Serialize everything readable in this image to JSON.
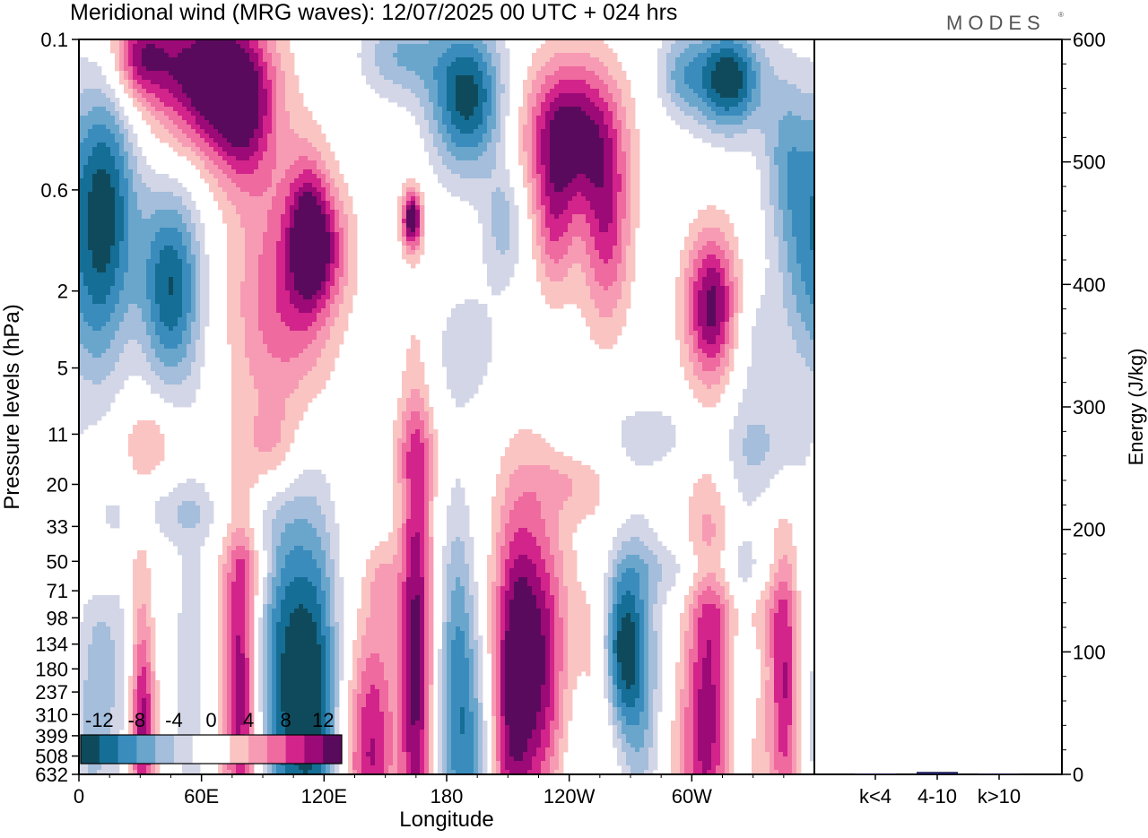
{
  "header": {
    "title": "Meridional wind (MRG waves):  12/07/2025  00 UTC  + 024 hrs",
    "brand": "MODES",
    "brand_mark": "®"
  },
  "chart_data": [
    {
      "type": "heatmap",
      "title": "Meridional wind (MRG waves):  12/07/2025  00 UTC  + 024 hrs",
      "xlabel": "Longitude",
      "ylabel": "Pressure levels (hPa)",
      "x_ticks": [
        "0",
        "60E",
        "120E",
        "180",
        "120W",
        "60W"
      ],
      "x_tick_degrees": [
        0,
        60,
        120,
        180,
        240,
        300
      ],
      "x_range": [
        0,
        360
      ],
      "y_ticks": [
        "0.1",
        "0.6",
        "2",
        "5",
        "11",
        "20",
        "33",
        "50",
        "71",
        "98",
        "134",
        "180",
        "237",
        "310",
        "399",
        "508",
        "632"
      ],
      "y_scale": "log-pressure",
      "colorbar": {
        "labels": [
          "-12",
          "-8",
          "-4",
          "0",
          "4",
          "8",
          "12"
        ],
        "colors": [
          "#0f4a5c",
          "#156e95",
          "#3a8cbd",
          "#6aa6cc",
          "#a4bedc",
          "#d3d6e6",
          "#ffffff",
          "#ffffff",
          "#fac4c2",
          "#f79bb4",
          "#ee6a9f",
          "#d2248a",
          "#9b0a76",
          "#5a0a5c"
        ]
      },
      "blobs": [
        {
          "lon": 62,
          "p": 0.15,
          "v": 14,
          "w": 28,
          "h": 0.1
        },
        {
          "lon": 30,
          "p": 0.12,
          "v": 9,
          "w": 14,
          "h": 0.06
        },
        {
          "lon": 12,
          "p": 0.7,
          "v": -13,
          "w": 16,
          "h": 0.16
        },
        {
          "lon": 45,
          "p": 1.9,
          "v": -12,
          "w": 15,
          "h": 0.13
        },
        {
          "lon": 8,
          "p": 3.0,
          "v": -4,
          "w": 14,
          "h": 0.12
        },
        {
          "lon": 100,
          "p": 2.2,
          "v": 8,
          "w": 24,
          "h": 0.18
        },
        {
          "lon": 112,
          "p": 1.0,
          "v": 10,
          "w": 10,
          "h": 0.1
        },
        {
          "lon": 80,
          "p": 0.25,
          "v": 9,
          "w": 16,
          "h": 0.1
        },
        {
          "lon": 163,
          "p": 0.85,
          "v": 14,
          "w": 5,
          "h": 0.04
        },
        {
          "lon": 158,
          "p": 0.12,
          "v": -6,
          "w": 20,
          "h": 0.06
        },
        {
          "lon": 190,
          "p": 0.2,
          "v": -13,
          "w": 18,
          "h": 0.1
        },
        {
          "lon": 208,
          "p": 0.9,
          "v": -5,
          "w": 10,
          "h": 0.08
        },
        {
          "lon": 122,
          "p": 1.2,
          "v": 6,
          "w": 12,
          "h": 0.08
        },
        {
          "lon": 240,
          "p": 0.3,
          "v": 13,
          "w": 22,
          "h": 0.1
        },
        {
          "lon": 258,
          "p": 0.9,
          "v": 9,
          "w": 12,
          "h": 0.14
        },
        {
          "lon": 233,
          "p": 0.9,
          "v": 7,
          "w": 10,
          "h": 0.1
        },
        {
          "lon": 318,
          "p": 0.16,
          "v": -14,
          "w": 16,
          "h": 0.07
        },
        {
          "lon": 295,
          "p": 0.15,
          "v": -6,
          "w": 12,
          "h": 0.06
        },
        {
          "lon": 346,
          "p": 0.4,
          "v": -6,
          "w": 12,
          "h": 0.12
        },
        {
          "lon": 352,
          "p": 1.5,
          "v": -4,
          "w": 10,
          "h": 0.14
        },
        {
          "lon": 310,
          "p": 2.4,
          "v": 13,
          "w": 13,
          "h": 0.1
        },
        {
          "lon": 330,
          "p": 3.5,
          "v": -3,
          "w": 14,
          "h": 0.1
        },
        {
          "lon": 190,
          "p": 4.0,
          "v": -3,
          "w": 20,
          "h": 0.1
        },
        {
          "lon": 35,
          "p": 12,
          "v": 4,
          "w": 14,
          "h": 0.05
        },
        {
          "lon": 95,
          "p": 13,
          "v": 4,
          "w": 12,
          "h": 0.06
        },
        {
          "lon": 165,
          "p": 13,
          "v": 3,
          "w": 12,
          "h": 0.06
        },
        {
          "lon": 335,
          "p": 13,
          "v": -4,
          "w": 22,
          "h": 0.07
        },
        {
          "lon": 280,
          "p": 11,
          "v": -3,
          "w": 26,
          "h": 0.05
        },
        {
          "lon": 240,
          "p": 20,
          "v": 3,
          "w": 18,
          "h": 0.04
        },
        {
          "lon": 50,
          "p": 28,
          "v": -3,
          "w": 30,
          "h": 0.04
        },
        {
          "lon": 300,
          "p": 55,
          "v": -3,
          "w": 36,
          "h": 0.04
        },
        {
          "lon": 85,
          "p": 55,
          "v": 3,
          "w": 10,
          "h": 0.04
        },
        {
          "lon": 10,
          "p": 55,
          "v": 3,
          "w": 14,
          "h": 0.04
        },
        {
          "lon": 150,
          "p": 65,
          "v": 3,
          "w": 8,
          "h": 0.05
        },
        {
          "lon": 328,
          "p": 95,
          "v": 3,
          "w": 20,
          "h": 0.05
        },
        {
          "lon": 30,
          "p": 260,
          "v": 5,
          "w": 6,
          "h": 0.25
        },
        {
          "lon": 32,
          "p": 380,
          "v": 7,
          "w": 6,
          "h": 0.12
        },
        {
          "lon": 15,
          "p": 180,
          "v": -4,
          "w": 12,
          "h": 0.2
        },
        {
          "lon": 55,
          "p": 200,
          "v": -3,
          "w": 10,
          "h": 0.3
        },
        {
          "lon": 80,
          "p": 270,
          "v": 9,
          "w": 8,
          "h": 0.25
        },
        {
          "lon": 75,
          "p": 160,
          "v": 4,
          "w": 10,
          "h": 0.2
        },
        {
          "lon": 103,
          "p": 180,
          "v": -11,
          "w": 16,
          "h": 0.25
        },
        {
          "lon": 118,
          "p": 240,
          "v": -6,
          "w": 10,
          "h": 0.25
        },
        {
          "lon": 110,
          "p": 380,
          "v": -3,
          "w": 14,
          "h": 0.2
        },
        {
          "lon": 165,
          "p": 170,
          "v": 13,
          "w": 8,
          "h": 0.35
        },
        {
          "lon": 146,
          "p": 420,
          "v": 7,
          "w": 10,
          "h": 0.2
        },
        {
          "lon": 138,
          "p": 560,
          "v": 5,
          "w": 10,
          "h": 0.15
        },
        {
          "lon": 185,
          "p": 110,
          "v": -5,
          "w": 8,
          "h": 0.2
        },
        {
          "lon": 190,
          "p": 520,
          "v": -8,
          "w": 14,
          "h": 0.2
        },
        {
          "lon": 210,
          "p": 520,
          "v": 6,
          "w": 10,
          "h": 0.2
        },
        {
          "lon": 215,
          "p": 120,
          "v": 9,
          "w": 12,
          "h": 0.2
        },
        {
          "lon": 230,
          "p": 200,
          "v": 8,
          "w": 12,
          "h": 0.2
        },
        {
          "lon": 222,
          "p": 220,
          "v": 3,
          "w": 20,
          "h": 0.3
        },
        {
          "lon": 265,
          "p": 140,
          "v": -13,
          "w": 10,
          "h": 0.12
        },
        {
          "lon": 275,
          "p": 220,
          "v": -6,
          "w": 10,
          "h": 0.2
        },
        {
          "lon": 255,
          "p": 200,
          "v": 5,
          "w": 12,
          "h": 0.2
        },
        {
          "lon": 240,
          "p": 450,
          "v": -4,
          "w": 14,
          "h": 0.2
        },
        {
          "lon": 308,
          "p": 220,
          "v": 11,
          "w": 12,
          "h": 0.25
        },
        {
          "lon": 298,
          "p": 420,
          "v": 3,
          "w": 14,
          "h": 0.25
        },
        {
          "lon": 346,
          "p": 220,
          "v": 11,
          "w": 8,
          "h": 0.2
        },
        {
          "lon": 330,
          "p": 480,
          "v": 4,
          "w": 8,
          "h": 0.15
        },
        {
          "lon": 352,
          "p": 180,
          "v": -3,
          "w": 6,
          "h": 0.2
        },
        {
          "lon": 325,
          "p": 260,
          "v": -4,
          "w": 8,
          "h": 0.25
        },
        {
          "lon": 5,
          "p": 400,
          "v": -3,
          "w": 8,
          "h": 0.2
        },
        {
          "lon": 300,
          "p": 120,
          "v": -3,
          "w": 16,
          "h": 0.15
        }
      ]
    },
    {
      "type": "bar",
      "categories": [
        "k<4",
        "4-10",
        "k>10"
      ],
      "values": [
        0,
        2,
        0
      ],
      "ylabel": "Energy (J/kg)",
      "ylim": [
        0,
        600
      ],
      "y_ticks": [
        "0",
        "100",
        "200",
        "300",
        "400",
        "500",
        "600"
      ],
      "color": "#1a1a55"
    }
  ]
}
